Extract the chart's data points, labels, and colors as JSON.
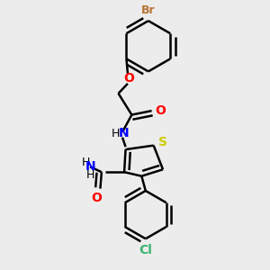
{
  "bg_color": "#ececec",
  "bond_color": "#000000",
  "bond_width": 1.8,
  "br_color": "#b87333",
  "o_color": "#ff0000",
  "n_color": "#0000ff",
  "s_color": "#cccc00",
  "cl_color": "#3cb371",
  "nh_color": "#0000ff",
  "xlim": [
    0,
    10
  ],
  "ylim": [
    0,
    10
  ]
}
